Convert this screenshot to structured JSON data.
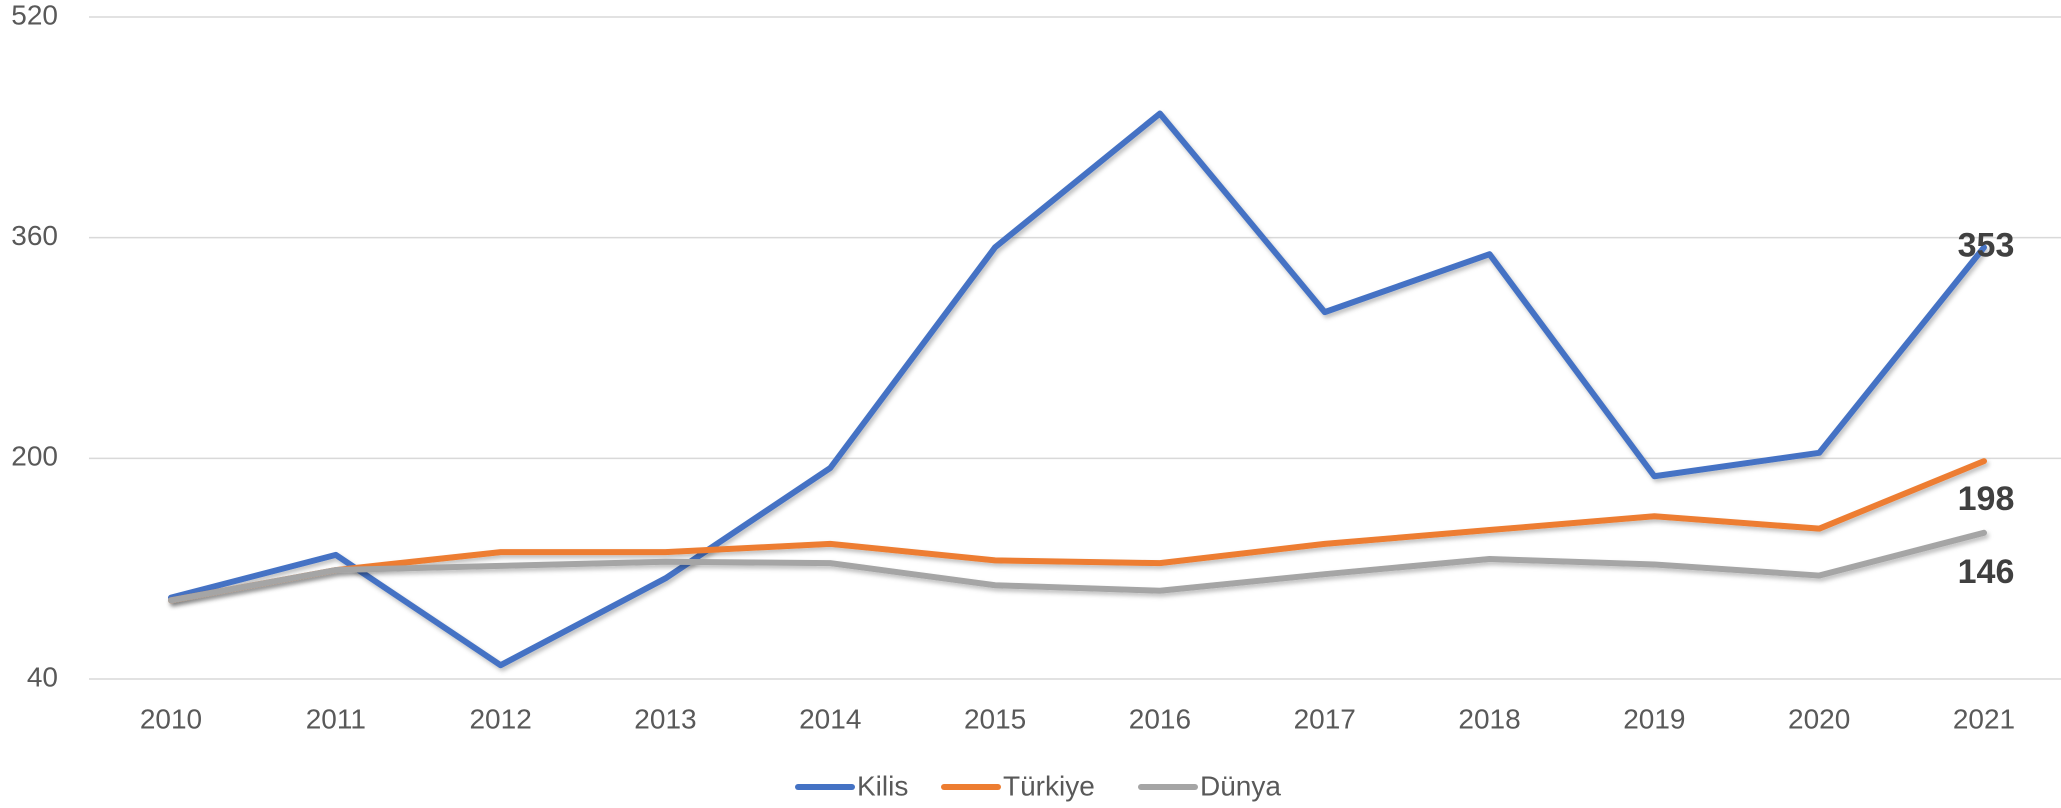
{
  "chart_data": {
    "type": "line",
    "categories": [
      "2010",
      "2011",
      "2012",
      "2013",
      "2014",
      "2015",
      "2016",
      "2017",
      "2018",
      "2019",
      "2020",
      "2021"
    ],
    "series": [
      {
        "name": "Kilis",
        "color": "#4472c4",
        "values": [
          99,
          130,
          50,
          113,
          193,
          353,
          450,
          306,
          348,
          187,
          204,
          353
        ]
      },
      {
        "name": "Türkiye",
        "color": "#ed7d31",
        "values": [
          97,
          119,
          132,
          132,
          138,
          126,
          124,
          138,
          148,
          158,
          149,
          198
        ]
      },
      {
        "name": "Dünya",
        "color": "#a5a5a5",
        "values": [
          97,
          119,
          122,
          125,
          124,
          108,
          104,
          116,
          127,
          123,
          115,
          146
        ]
      }
    ],
    "ylim": [
      40,
      520
    ],
    "yticks": [
      40,
      200,
      360,
      520
    ],
    "grid": true,
    "legend": "bottom"
  }
}
